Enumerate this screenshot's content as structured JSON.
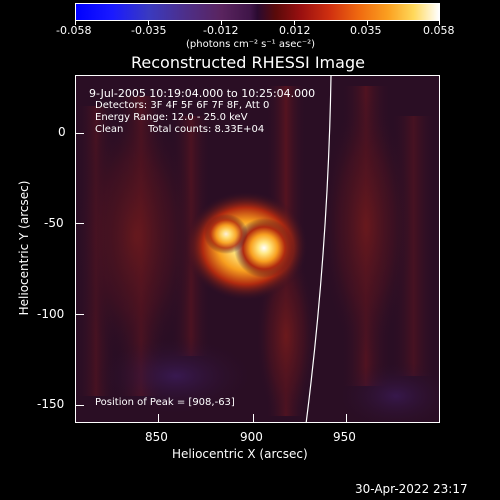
{
  "colorbar": {
    "tick_labels": [
      "-0.058",
      "-0.035",
      "-0.012",
      "0.012",
      "0.035",
      "0.058"
    ],
    "unit_label": "(photons cm⁻² s⁻¹ asec⁻²)"
  },
  "plot": {
    "title": "Reconstructed RHESSI Image",
    "annotation": {
      "time_range": "9-Jul-2005 10:19:04.000 to 10:25:04.000",
      "detectors": "Detectors: 3F 4F 5F 6F 7F 8F, Att 0",
      "energy_range": "Energy Range: 12.0 - 25.0 keV",
      "clean_label": "Clean",
      "total_counts": "Total counts: 8.33E+04",
      "peak_position": "Position of Peak = [908,-63]"
    },
    "xaxis": {
      "label": "Heliocentric X (arcsec)",
      "tick_labels": [
        "850",
        "900",
        "950"
      ]
    },
    "yaxis": {
      "label": "Heliocentric Y (arcsec)",
      "tick_labels": [
        "0",
        "-50",
        "-100",
        "-150"
      ]
    }
  },
  "footer": {
    "timestamp": "30-Apr-2022 23:17"
  },
  "colors": {
    "background": "#000000",
    "text": "#ffffff",
    "limb_line": "#ffffff"
  }
}
